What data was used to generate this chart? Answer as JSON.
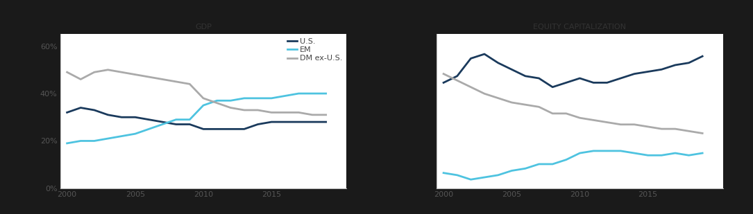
{
  "gdp_years": [
    2000,
    2001,
    2002,
    2003,
    2004,
    2005,
    2006,
    2007,
    2008,
    2009,
    2010,
    2011,
    2012,
    2013,
    2014,
    2015,
    2016,
    2017,
    2018,
    2019
  ],
  "gdp_us": [
    32,
    34,
    33,
    31,
    30,
    30,
    29,
    28,
    27,
    27,
    25,
    25,
    25,
    25,
    27,
    28,
    28,
    28,
    28,
    28
  ],
  "gdp_em": [
    19,
    20,
    20,
    21,
    22,
    23,
    25,
    27,
    29,
    29,
    35,
    37,
    37,
    38,
    38,
    38,
    39,
    40,
    40,
    40
  ],
  "gdp_dm": [
    49,
    46,
    49,
    50,
    49,
    48,
    47,
    46,
    45,
    44,
    38,
    36,
    34,
    33,
    33,
    32,
    32,
    32,
    31,
    31
  ],
  "eq_years": [
    2000,
    2001,
    2002,
    2003,
    2004,
    2005,
    2006,
    2007,
    2008,
    2009,
    2010,
    2011,
    2012,
    2013,
    2014,
    2015,
    2016,
    2017,
    2018,
    2019
  ],
  "eq_us": [
    48,
    51,
    59,
    61,
    57,
    54,
    51,
    50,
    46,
    48,
    50,
    48,
    48,
    50,
    52,
    53,
    54,
    56,
    57,
    60
  ],
  "eq_em": [
    7,
    6,
    4,
    5,
    6,
    8,
    9,
    11,
    11,
    13,
    16,
    17,
    17,
    17,
    16,
    15,
    15,
    16,
    15,
    16
  ],
  "eq_dm": [
    52,
    49,
    46,
    43,
    41,
    39,
    38,
    37,
    34,
    34,
    32,
    31,
    30,
    29,
    29,
    28,
    27,
    27,
    26,
    25
  ],
  "color_us": "#1a3a5c",
  "color_em": "#4ec3e0",
  "color_dm": "#aaaaaa",
  "title_gdp": "GDP",
  "title_eq": "EQUITY CAPITALIZATION",
  "outer_bg": "#1a1a1a",
  "inner_bg": "#ffffff",
  "title_fontsize": 8,
  "tick_fontsize": 8,
  "legend_fontsize": 8,
  "line_width": 2.0,
  "gdp_ylim": [
    0,
    65
  ],
  "eq_ylim": [
    0,
    70
  ],
  "xlim": [
    1999.5,
    2020.5
  ],
  "yticks_gdp": [
    0,
    20,
    40,
    60
  ],
  "yticks_eq": [
    0,
    20,
    40,
    60
  ],
  "xticks": [
    2000,
    2005,
    2010,
    2015
  ]
}
